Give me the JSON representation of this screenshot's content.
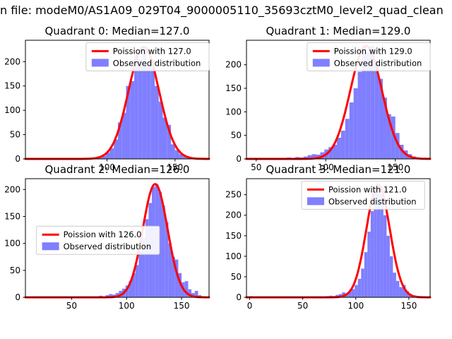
{
  "figure": {
    "title": "n file: modeM0/AS1A09_029T04_9000005110_35693cztM0_level2_quad_clean",
    "background": "#ffffff"
  },
  "colors": {
    "bar": "#7f7fff",
    "curve": "#ff0000",
    "spine": "#000000",
    "legend_border": "#cccccc"
  },
  "chart_data": [
    {
      "type": "histogram+line",
      "title": "Quadrant 0: Median=127.0",
      "median": 127.0,
      "legend": [
        "Poission with 127.0",
        "Observed distribution"
      ],
      "legend_pos": {
        "x": 0.33,
        "y": 0.02
      },
      "xlim": [
        40,
        175
      ],
      "ylim": [
        0,
        244
      ],
      "xticks": [
        100,
        150
      ],
      "yticks": [
        0,
        50,
        100,
        150,
        200
      ],
      "bins": {
        "start": 45,
        "width": 3,
        "counts": [
          1,
          0,
          0,
          0,
          1,
          0,
          0,
          1,
          0,
          0,
          0,
          0,
          0,
          0,
          1,
          2,
          4,
          6,
          13,
          22,
          40,
          75,
          95,
          150,
          160,
          215,
          205,
          232,
          195,
          205,
          150,
          118,
          85,
          70,
          30,
          18,
          10,
          5,
          3,
          1,
          0,
          1
        ]
      },
      "poisson": {
        "mu": 127,
        "peak": 230
      }
    },
    {
      "type": "histogram+line",
      "title": "Quadrant 1: Median=129.0",
      "median": 129.0,
      "legend": [
        "Poission with 129.0",
        "Observed distribution"
      ],
      "legend_pos": {
        "x": 0.33,
        "y": 0.02
      },
      "xlim": [
        43,
        175
      ],
      "ylim": [
        0,
        252
      ],
      "xticks": [
        50,
        100,
        150
      ],
      "yticks": [
        0,
        50,
        100,
        150,
        200
      ],
      "bins": {
        "start": 45,
        "width": 3,
        "counts": [
          0,
          0,
          1,
          0,
          1,
          0,
          2,
          1,
          2,
          3,
          2,
          4,
          3,
          5,
          8,
          10,
          9,
          14,
          20,
          25,
          30,
          45,
          60,
          85,
          120,
          150,
          185,
          238,
          225,
          240,
          205,
          170,
          130,
          95,
          90,
          55,
          30,
          18,
          10,
          5,
          2,
          1
        ]
      },
      "poisson": {
        "mu": 129,
        "peak": 240
      }
    },
    {
      "type": "histogram+line",
      "title": "Quadrant 2: Median=126.0",
      "median": 126.0,
      "legend": [
        "Poission with 126.0",
        "Observed distribution"
      ],
      "legend_pos": {
        "x": 0.06,
        "y": 0.4
      },
      "xlim": [
        8,
        175
      ],
      "ylim": [
        0,
        220
      ],
      "xticks": [
        50,
        100,
        150
      ],
      "yticks": [
        0,
        50,
        100,
        150,
        200
      ],
      "bins": {
        "start": 15,
        "width": 3,
        "counts": [
          0,
          0,
          0,
          1,
          0,
          0,
          0,
          1,
          0,
          0,
          0,
          1,
          0,
          0,
          1,
          0,
          1,
          2,
          1,
          2,
          3,
          2,
          4,
          6,
          5,
          8,
          12,
          16,
          22,
          30,
          45,
          60,
          85,
          110,
          145,
          175,
          205,
          210,
          195,
          170,
          140,
          100,
          75,
          70,
          45,
          28,
          30,
          15,
          8,
          12,
          4,
          2
        ]
      },
      "poisson": {
        "mu": 126,
        "peak": 210
      }
    },
    {
      "type": "histogram+line",
      "title": "Quadrant 3: Median=121.0",
      "median": 121.0,
      "legend": [
        "Poission with 121.0",
        "Observed distribution"
      ],
      "legend_pos": {
        "x": 0.3,
        "y": 0.02
      },
      "xlim": [
        -3,
        170
      ],
      "ylim": [
        0,
        289
      ],
      "xticks": [
        0,
        50,
        100,
        150
      ],
      "yticks": [
        0,
        50,
        100,
        150,
        200,
        250
      ],
      "bins": {
        "start": 0,
        "width": 3,
        "counts": [
          3,
          0,
          0,
          0,
          0,
          0,
          0,
          0,
          0,
          0,
          0,
          0,
          0,
          0,
          0,
          0,
          0,
          0,
          0,
          0,
          1,
          2,
          1,
          2,
          3,
          4,
          3,
          6,
          8,
          12,
          10,
          15,
          20,
          30,
          45,
          70,
          110,
          160,
          210,
          265,
          275,
          250,
          200,
          150,
          100,
          60,
          40,
          25,
          30,
          15,
          8,
          5,
          3,
          2,
          1,
          1
        ]
      },
      "poisson": {
        "mu": 121,
        "peak": 275
      }
    }
  ]
}
